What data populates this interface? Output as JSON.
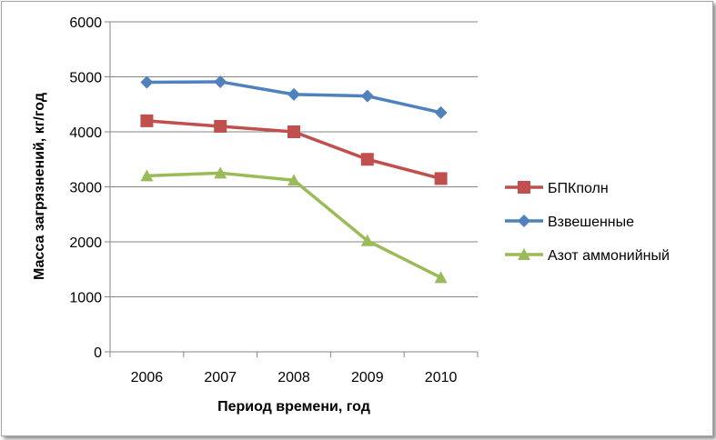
{
  "chart_data": {
    "type": "line",
    "categories": [
      "2006",
      "2007",
      "2008",
      "2009",
      "2010"
    ],
    "series": [
      {
        "name": "БПКполн",
        "values": [
          4200,
          4100,
          4000,
          3500,
          3150
        ],
        "color": "#c0504d",
        "marker": "square"
      },
      {
        "name": "Взвешенные",
        "values": [
          4900,
          4910,
          4680,
          4650,
          4350
        ],
        "color": "#4f81bd",
        "marker": "diamond"
      },
      {
        "name": "Азот аммонийный",
        "values": [
          3200,
          3250,
          3120,
          2020,
          1350
        ],
        "color": "#9bbb59",
        "marker": "triangle"
      }
    ],
    "xlabel": "Период времени, год",
    "ylabel": "Масса загрязнений, кг/год",
    "ylim": [
      0,
      6000
    ],
    "yticks": [
      0,
      1000,
      2000,
      3000,
      4000,
      5000,
      6000
    ],
    "grid": true,
    "legend_position": "right"
  }
}
